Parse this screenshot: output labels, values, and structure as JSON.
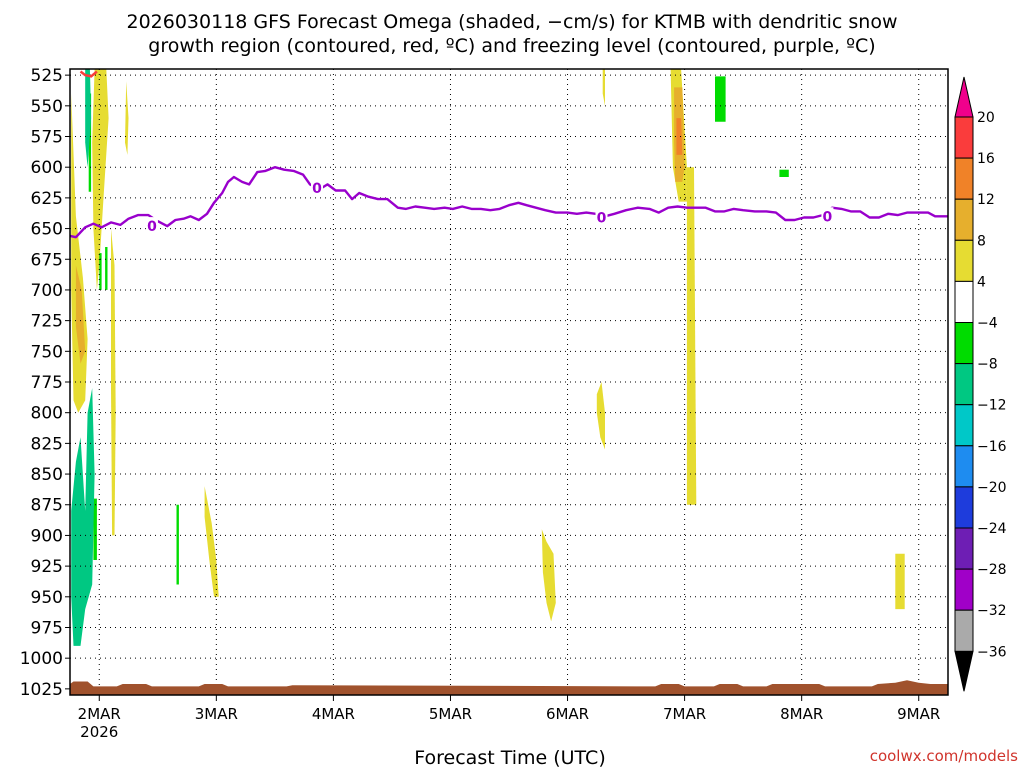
{
  "chart_data": {
    "type": "heatmap",
    "title_line1": "2026030118 GFS Forecast Omega (shaded, −cm/s) for KTMB with dendritic snow",
    "title_line2": "growth region (contoured, red, ºC) and freezing level (contoured, purple, ºC)",
    "xlabel": "Forecast Time (UTC)",
    "credit": "coolwx.com/models",
    "x_ticks": [
      {
        "label": "2MAR",
        "sublabel": "2026",
        "day": 2
      },
      {
        "label": "3MAR",
        "day": 3
      },
      {
        "label": "4MAR",
        "day": 4
      },
      {
        "label": "5MAR",
        "day": 5
      },
      {
        "label": "6MAR",
        "day": 6
      },
      {
        "label": "7MAR",
        "day": 7
      },
      {
        "label": "8MAR",
        "day": 8
      },
      {
        "label": "9MAR",
        "day": 9
      }
    ],
    "xlim": [
      1.75,
      9.25
    ],
    "y_ticks": [
      525,
      550,
      575,
      600,
      625,
      650,
      675,
      700,
      725,
      750,
      775,
      800,
      825,
      850,
      875,
      900,
      925,
      950,
      975,
      1000,
      1025
    ],
    "ylim": [
      520,
      1030
    ],
    "y_axis_inverted": true,
    "grid": true,
    "colorbar": {
      "placement": "right",
      "levels": [
        -36,
        -32,
        -28,
        -24,
        -20,
        -16,
        -12,
        -8,
        -4,
        4,
        8,
        12,
        16,
        20
      ],
      "colors": [
        "#000000",
        "#aaaaaa",
        "#a000c8",
        "#6e1eb4",
        "#1e3cdc",
        "#1e8cf0",
        "#00c8c8",
        "#00c882",
        "#00dc00",
        "#ffffff",
        "#e6dc32",
        "#e6af2d",
        "#f08228",
        "#fa3c3c",
        "#f0008c"
      ]
    },
    "freezing_level": {
      "label": "0",
      "color": "#9900cc",
      "points": [
        [
          1.75,
          656
        ],
        [
          1.8,
          657
        ],
        [
          1.88,
          649
        ],
        [
          1.95,
          646
        ],
        [
          2.02,
          649
        ],
        [
          2.1,
          645
        ],
        [
          2.18,
          647
        ],
        [
          2.25,
          642
        ],
        [
          2.33,
          639
        ],
        [
          2.42,
          639
        ],
        [
          2.5,
          644
        ],
        [
          2.58,
          648
        ],
        [
          2.65,
          643
        ],
        [
          2.72,
          642
        ],
        [
          2.78,
          640
        ],
        [
          2.85,
          643
        ],
        [
          2.92,
          638
        ],
        [
          2.98,
          629
        ],
        [
          3.05,
          621
        ],
        [
          3.1,
          612
        ],
        [
          3.15,
          608
        ],
        [
          3.22,
          612
        ],
        [
          3.28,
          614
        ],
        [
          3.35,
          604
        ],
        [
          3.42,
          603
        ],
        [
          3.5,
          600
        ],
        [
          3.58,
          602
        ],
        [
          3.66,
          603
        ],
        [
          3.74,
          606
        ],
        [
          3.8,
          614
        ],
        [
          3.88,
          618
        ],
        [
          3.95,
          614
        ],
        [
          4.02,
          619
        ],
        [
          4.1,
          619
        ],
        [
          4.16,
          626
        ],
        [
          4.22,
          621
        ],
        [
          4.3,
          624
        ],
        [
          4.38,
          626
        ],
        [
          4.46,
          626
        ],
        [
          4.55,
          633
        ],
        [
          4.62,
          634
        ],
        [
          4.7,
          632
        ],
        [
          4.78,
          633
        ],
        [
          4.86,
          634
        ],
        [
          4.95,
          633
        ],
        [
          5.02,
          634
        ],
        [
          5.1,
          632
        ],
        [
          5.18,
          634
        ],
        [
          5.26,
          634
        ],
        [
          5.34,
          635
        ],
        [
          5.42,
          634
        ],
        [
          5.5,
          631
        ],
        [
          5.58,
          629
        ],
        [
          5.65,
          631
        ],
        [
          5.73,
          633
        ],
        [
          5.81,
          635
        ],
        [
          5.9,
          637
        ],
        [
          6.0,
          637
        ],
        [
          6.08,
          638
        ],
        [
          6.16,
          637
        ],
        [
          6.24,
          638
        ],
        [
          6.32,
          640
        ],
        [
          6.4,
          638
        ],
        [
          6.5,
          635
        ],
        [
          6.6,
          633
        ],
        [
          6.7,
          634
        ],
        [
          6.78,
          637
        ],
        [
          6.86,
          633
        ],
        [
          6.94,
          632
        ],
        [
          7.02,
          633
        ],
        [
          7.1,
          633
        ],
        [
          7.18,
          633
        ],
        [
          7.26,
          636
        ],
        [
          7.34,
          636
        ],
        [
          7.42,
          634
        ],
        [
          7.5,
          635
        ],
        [
          7.6,
          636
        ],
        [
          7.7,
          636
        ],
        [
          7.78,
          637
        ],
        [
          7.86,
          643
        ],
        [
          7.94,
          643
        ],
        [
          8.02,
          641
        ],
        [
          8.1,
          641
        ],
        [
          8.18,
          639
        ],
        [
          8.26,
          633
        ],
        [
          8.34,
          634
        ],
        [
          8.42,
          636
        ],
        [
          8.5,
          636
        ],
        [
          8.58,
          641
        ],
        [
          8.66,
          641
        ],
        [
          8.74,
          638
        ],
        [
          8.82,
          639
        ],
        [
          8.9,
          637
        ],
        [
          9.0,
          637
        ],
        [
          9.08,
          637
        ],
        [
          9.14,
          640
        ],
        [
          9.25,
          640
        ]
      ],
      "label_positions": [
        [
          2.45,
          648
        ],
        [
          3.86,
          617
        ],
        [
          6.29,
          641
        ],
        [
          8.22,
          640
        ]
      ]
    },
    "dgz_contour": {
      "color": "#fa3c3c",
      "points": [
        [
          1.84,
          522
        ],
        [
          1.88,
          525
        ],
        [
          1.93,
          526
        ],
        [
          1.98,
          522
        ]
      ]
    },
    "terrain": {
      "color": "#a0522d",
      "points": [
        [
          1.75,
          1021
        ],
        [
          1.78,
          1019
        ],
        [
          1.9,
          1019
        ],
        [
          1.95,
          1023
        ],
        [
          2.15,
          1023
        ],
        [
          2.2,
          1021
        ],
        [
          2.4,
          1021
        ],
        [
          2.45,
          1023
        ],
        [
          2.85,
          1023
        ],
        [
          2.9,
          1021
        ],
        [
          3.05,
          1021
        ],
        [
          3.1,
          1023
        ],
        [
          3.6,
          1023
        ],
        [
          3.65,
          1022
        ],
        [
          6.75,
          1023
        ],
        [
          6.8,
          1021
        ],
        [
          6.95,
          1021
        ],
        [
          7.0,
          1023
        ],
        [
          7.25,
          1023
        ],
        [
          7.3,
          1021
        ],
        [
          7.45,
          1021
        ],
        [
          7.5,
          1023
        ],
        [
          7.7,
          1023
        ],
        [
          7.75,
          1021
        ],
        [
          8.15,
          1021
        ],
        [
          8.2,
          1023
        ],
        [
          8.6,
          1023
        ],
        [
          8.65,
          1021
        ],
        [
          8.8,
          1020
        ],
        [
          8.9,
          1018
        ],
        [
          9.0,
          1020
        ],
        [
          9.1,
          1021
        ],
        [
          9.25,
          1021
        ]
      ]
    },
    "omega_regions": [
      {
        "color": "#e6dc32",
        "points": [
          [
            1.76,
            540
          ],
          [
            1.8,
            640
          ],
          [
            1.86,
            690
          ],
          [
            1.9,
            740
          ],
          [
            1.88,
            790
          ],
          [
            1.82,
            800
          ],
          [
            1.78,
            790
          ],
          [
            1.76,
            700
          ]
        ]
      },
      {
        "color": "#e6dc32",
        "points": [
          [
            1.96,
            520
          ],
          [
            2.06,
            520
          ],
          [
            2.08,
            560
          ],
          [
            2.04,
            620
          ],
          [
            2.0,
            680
          ],
          [
            1.98,
            700
          ],
          [
            1.95,
            650
          ],
          [
            1.94,
            580
          ]
        ]
      },
      {
        "color": "#e6dc32",
        "points": [
          [
            2.1,
            650
          ],
          [
            2.13,
            680
          ],
          [
            2.14,
            800
          ],
          [
            2.13,
            900
          ],
          [
            2.11,
            900
          ],
          [
            2.1,
            780
          ]
        ]
      },
      {
        "color": "#e6dc32",
        "points": [
          [
            2.23,
            530
          ],
          [
            2.25,
            560
          ],
          [
            2.24,
            590
          ],
          [
            2.22,
            580
          ]
        ]
      },
      {
        "color": "#e6dc32",
        "points": [
          [
            2.9,
            860
          ],
          [
            2.96,
            890
          ],
          [
            3.0,
            920
          ],
          [
            3.02,
            950
          ],
          [
            2.98,
            950
          ],
          [
            2.94,
            920
          ],
          [
            2.9,
            885
          ]
        ]
      },
      {
        "color": "#e6dc32",
        "points": [
          [
            5.78,
            895
          ],
          [
            5.82,
            905
          ],
          [
            5.88,
            915
          ],
          [
            5.9,
            955
          ],
          [
            5.86,
            970
          ],
          [
            5.82,
            955
          ],
          [
            5.79,
            930
          ]
        ]
      },
      {
        "color": "#e6dc32",
        "points": [
          [
            6.25,
            785
          ],
          [
            6.29,
            775
          ],
          [
            6.32,
            800
          ],
          [
            6.32,
            830
          ],
          [
            6.28,
            820
          ],
          [
            6.25,
            800
          ]
        ]
      },
      {
        "color": "#e6dc32",
        "points": [
          [
            6.3,
            520
          ],
          [
            6.32,
            520
          ],
          [
            6.32,
            550
          ],
          [
            6.3,
            540
          ]
        ]
      },
      {
        "color": "#e6dc32",
        "points": [
          [
            6.88,
            520
          ],
          [
            6.97,
            520
          ],
          [
            7.02,
            600
          ],
          [
            7.02,
            628
          ],
          [
            6.95,
            628
          ],
          [
            6.9,
            600
          ]
        ]
      },
      {
        "color": "#e6dc32",
        "points": [
          [
            7.02,
            600
          ],
          [
            7.08,
            600
          ],
          [
            7.1,
            875
          ],
          [
            7.02,
            875
          ],
          [
            7.02,
            700
          ]
        ]
      },
      {
        "color": "#e6dc32",
        "points": [
          [
            8.8,
            915
          ],
          [
            8.88,
            915
          ],
          [
            8.88,
            960
          ],
          [
            8.8,
            960
          ]
        ]
      },
      {
        "color": "#e6af2d",
        "points": [
          [
            1.8,
            680
          ],
          [
            1.85,
            700
          ],
          [
            1.88,
            750
          ],
          [
            1.84,
            760
          ],
          [
            1.8,
            730
          ]
        ]
      },
      {
        "color": "#e6af2d",
        "points": [
          [
            6.91,
            535
          ],
          [
            6.98,
            535
          ],
          [
            7.0,
            600
          ],
          [
            6.98,
            612
          ],
          [
            6.92,
            612
          ],
          [
            6.91,
            580
          ]
        ]
      },
      {
        "color": "#f08228",
        "points": [
          [
            6.93,
            560
          ],
          [
            6.97,
            560
          ],
          [
            6.98,
            590
          ],
          [
            6.93,
            590
          ]
        ]
      },
      {
        "color": "#00dc00",
        "points": [
          [
            1.95,
            870
          ],
          [
            1.98,
            870
          ],
          [
            1.98,
            920
          ],
          [
            1.95,
            920
          ]
        ]
      },
      {
        "color": "#00dc00",
        "points": [
          [
            1.91,
            540
          ],
          [
            1.93,
            540
          ],
          [
            1.93,
            620
          ],
          [
            1.91,
            620
          ]
        ]
      },
      {
        "color": "#00dc00",
        "points": [
          [
            2.0,
            670
          ],
          [
            2.02,
            670
          ],
          [
            2.02,
            700
          ],
          [
            2.0,
            700
          ]
        ]
      },
      {
        "color": "#00dc00",
        "points": [
          [
            2.05,
            665
          ],
          [
            2.07,
            665
          ],
          [
            2.07,
            700
          ],
          [
            2.05,
            700
          ]
        ]
      },
      {
        "color": "#00dc00",
        "points": [
          [
            2.66,
            875
          ],
          [
            2.68,
            875
          ],
          [
            2.68,
            940
          ],
          [
            2.66,
            940
          ]
        ]
      },
      {
        "color": "#00dc00",
        "points": [
          [
            7.26,
            526
          ],
          [
            7.35,
            526
          ],
          [
            7.35,
            563
          ],
          [
            7.26,
            563
          ]
        ]
      },
      {
        "color": "#00dc00",
        "points": [
          [
            7.81,
            602
          ],
          [
            7.89,
            602
          ],
          [
            7.89,
            608
          ],
          [
            7.81,
            608
          ]
        ]
      },
      {
        "color": "#00c882",
        "points": [
          [
            1.76,
            880
          ],
          [
            1.8,
            840
          ],
          [
            1.84,
            820
          ],
          [
            1.88,
            880
          ],
          [
            1.9,
            800
          ],
          [
            1.94,
            780
          ],
          [
            1.96,
            850
          ],
          [
            1.94,
            940
          ],
          [
            1.88,
            960
          ],
          [
            1.84,
            990
          ],
          [
            1.78,
            990
          ],
          [
            1.76,
            950
          ]
        ]
      },
      {
        "color": "#00c882",
        "points": [
          [
            1.88,
            520
          ],
          [
            1.92,
            520
          ],
          [
            1.93,
            560
          ],
          [
            1.9,
            600
          ],
          [
            1.88,
            580
          ]
        ]
      }
    ]
  }
}
